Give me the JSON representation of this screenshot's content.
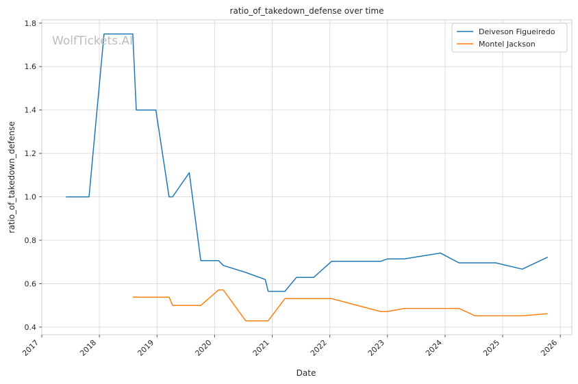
{
  "chart_data": {
    "type": "line",
    "title": "ratio_of_takedown_defense over time",
    "xlabel": "Date",
    "ylabel": "ratio_of_takedown_defense",
    "watermark": "WolfTickets.AI",
    "xlim": [
      2017.0,
      2026.2
    ],
    "ylim": [
      0.365,
      1.815
    ],
    "x_ticks": [
      2017,
      2018,
      2019,
      2020,
      2021,
      2022,
      2023,
      2024,
      2025,
      2026
    ],
    "y_ticks": [
      0.4,
      0.6,
      0.8,
      1.0,
      1.2,
      1.4,
      1.6,
      1.8
    ],
    "grid": true,
    "legend_position": "top-right",
    "series": [
      {
        "name": "Deiveson Figueiredo",
        "color": "#1f77b4",
        "x": [
          2017.42,
          2017.82,
          2018.08,
          2018.58,
          2018.64,
          2018.98,
          2019.21,
          2019.27,
          2019.56,
          2019.76,
          2020.07,
          2020.15,
          2020.54,
          2020.88,
          2020.93,
          2021.22,
          2021.42,
          2021.72,
          2022.03,
          2022.88,
          2023.0,
          2023.29,
          2023.92,
          2024.24,
          2024.88,
          2025.34,
          2025.78
        ],
        "y": [
          1.0,
          1.0,
          1.75,
          1.75,
          1.4,
          1.4,
          1.0,
          1.0,
          1.111,
          0.706,
          0.706,
          0.684,
          0.652,
          0.619,
          0.565,
          0.565,
          0.629,
          0.629,
          0.703,
          0.703,
          0.714,
          0.714,
          0.741,
          0.696,
          0.696,
          0.667,
          0.722
        ]
      },
      {
        "name": "Montel Jackson",
        "color": "#ff7f0e",
        "x": [
          2018.58,
          2019.21,
          2019.27,
          2019.76,
          2020.07,
          2020.15,
          2020.54,
          2020.93,
          2021.22,
          2022.03,
          2022.88,
          2023.0,
          2023.29,
          2024.24,
          2024.52,
          2025.34,
          2025.78
        ],
        "y": [
          0.538,
          0.538,
          0.5,
          0.5,
          0.571,
          0.571,
          0.429,
          0.429,
          0.531,
          0.531,
          0.472,
          0.472,
          0.486,
          0.486,
          0.452,
          0.452,
          0.462
        ]
      }
    ]
  }
}
